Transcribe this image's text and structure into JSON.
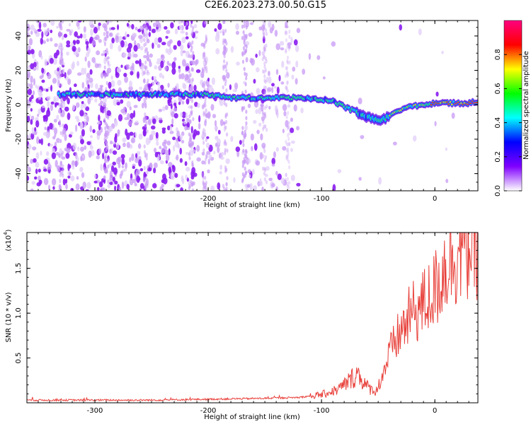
{
  "title": "C2E6.2023.273.00.50.G15",
  "chart_data": [
    {
      "type": "heatmap",
      "name": "spectrogram",
      "xlabel": "Height of straight line (km)",
      "ylabel": "Frequency (Hz)",
      "xlim": [
        -360,
        38
      ],
      "ylim": [
        -50,
        49
      ],
      "xticks": [
        "-300",
        "-200",
        "-100",
        "0"
      ],
      "xtick_values": [
        -300,
        -200,
        -100,
        0
      ],
      "yticks": [
        "-40",
        "-20",
        "0",
        "20",
        "40"
      ],
      "ytick_values": [
        -40,
        -20,
        0,
        20,
        40
      ],
      "colorbar": {
        "label": "Normalized spectral amplitude",
        "range": [
          0,
          1
        ],
        "ticks": [
          "0.0",
          "0.2",
          "0.4",
          "0.6",
          "0.8"
        ],
        "tick_values": [
          0.0,
          0.2,
          0.4,
          0.6,
          0.8
        ],
        "colors": [
          "#ffffff",
          "#8000ff",
          "#0000ff",
          "#00ffff",
          "#00ff00",
          "#ffff00",
          "#ff0000",
          "#ff0080"
        ]
      },
      "ridge": {
        "x": [
          -330,
          -300,
          -270,
          -240,
          -210,
          -200,
          -180,
          -160,
          -140,
          -120,
          -100,
          -90,
          -80,
          -70,
          -60,
          -50,
          -40,
          -30,
          -20,
          -10,
          0,
          10,
          20,
          30,
          38
        ],
        "y": [
          6,
          6,
          6,
          6,
          6,
          6,
          4,
          4,
          4,
          4,
          3,
          2,
          -1,
          -4,
          -7,
          -9,
          -7,
          -3,
          -1,
          0,
          1,
          1,
          1,
          1,
          2
        ]
      }
    },
    {
      "type": "line",
      "name": "snr",
      "xlabel": "Height of straight line (km)",
      "ylabel": "SNR (10 * v/v)",
      "multiplier_label": "(x10",
      "multiplier_exp": "4",
      "xlim": [
        -360,
        38
      ],
      "ylim": [
        0,
        1.9
      ],
      "xticks": [
        "-300",
        "-200",
        "-100",
        "0"
      ],
      "xtick_values": [
        -300,
        -200,
        -100,
        0
      ],
      "yticks": [
        "0.5",
        "1.0",
        "1.5"
      ],
      "ytick_values": [
        0.5,
        1.0,
        1.5
      ],
      "color": "#e8403a",
      "envelope": {
        "x": [
          -360,
          -250,
          -200,
          -150,
          -120,
          -100,
          -85,
          -75,
          -68,
          -60,
          -52,
          -45,
          -40,
          -30,
          -20,
          -10,
          0,
          10,
          20,
          30,
          38
        ],
        "y": [
          0.03,
          0.03,
          0.04,
          0.05,
          0.06,
          0.09,
          0.15,
          0.25,
          0.33,
          0.18,
          0.12,
          0.35,
          0.55,
          0.8,
          1.0,
          1.1,
          1.25,
          1.55,
          1.7,
          1.78,
          1.82
        ]
      }
    }
  ]
}
